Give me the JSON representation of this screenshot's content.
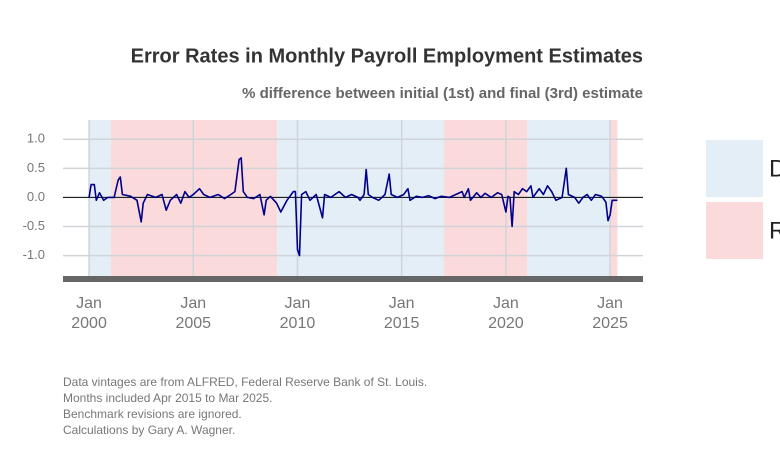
{
  "chart_data": {
    "type": "line",
    "title": "Error Rates in Monthly Payroll Employment Estimates",
    "subtitle": "% difference between initial (1st) and final (3rd) estimate",
    "notes": [
      "Data vintages are from ALFRED, Federal Reserve Bank of St. Louis.",
      "Months included Apr 2015 to Mar 2025.",
      "Benchmark revisions are ignored.",
      "Calculations by Gary A. Wagner."
    ],
    "legend": [
      {
        "name": "D",
        "color": "#e4eef7"
      },
      {
        "name": "R",
        "color": "#fadadb"
      }
    ],
    "shading": [
      {
        "start": 2000,
        "end": 2001.05,
        "party": 0
      },
      {
        "start": 2001.05,
        "end": 2009.03,
        "party": 1
      },
      {
        "start": 2009.03,
        "end": 2017.03,
        "party": 0
      },
      {
        "start": 2017.03,
        "end": 2021.03,
        "party": 1
      },
      {
        "start": 2021.03,
        "end": 2025.03,
        "party": 0
      },
      {
        "start": 2025.03,
        "end": 2025.35,
        "party": 1
      }
    ],
    "color": "#00008b",
    "x": [
      2000.0,
      2000.1,
      2000.25,
      2000.35,
      2000.5,
      2000.7,
      2000.9,
      2001.2,
      2001.4,
      2001.5,
      2001.6,
      2002.0,
      2002.3,
      2002.5,
      2002.6,
      2002.8,
      2003.2,
      2003.5,
      2003.7,
      2003.9,
      2004.2,
      2004.4,
      2004.6,
      2004.8,
      2005.0,
      2005.3,
      2005.5,
      2005.8,
      2006.2,
      2006.5,
      2006.8,
      2007.0,
      2007.2,
      2007.3,
      2007.4,
      2007.6,
      2007.9,
      2008.2,
      2008.4,
      2008.5,
      2008.7,
      2009.0,
      2009.2,
      2009.5,
      2009.8,
      2009.9,
      2010.0,
      2010.1,
      2010.2,
      2010.4,
      2010.6,
      2010.9,
      2011.2,
      2011.3,
      2011.6,
      2012.0,
      2012.3,
      2012.6,
      2012.9,
      2013.0,
      2013.2,
      2013.3,
      2013.4,
      2013.6,
      2013.9,
      2014.2,
      2014.4,
      2014.5,
      2014.8,
      2015.1,
      2015.3,
      2015.4,
      2015.7,
      2016.0,
      2016.3,
      2016.6,
      2016.9,
      2017.3,
      2017.6,
      2017.9,
      2018.0,
      2018.2,
      2018.3,
      2018.6,
      2018.8,
      2019.0,
      2019.3,
      2019.6,
      2019.8,
      2020.0,
      2020.1,
      2020.2,
      2020.3,
      2020.4,
      2020.6,
      2020.8,
      2021.0,
      2021.2,
      2021.3,
      2021.6,
      2021.8,
      2022.0,
      2022.2,
      2022.4,
      2022.7,
      2022.9,
      2023.0,
      2023.3,
      2023.5,
      2023.7,
      2023.9,
      2024.1,
      2024.3,
      2024.6,
      2024.8,
      2024.9,
      2025.0,
      2025.1,
      2025.35
    ],
    "values": [
      0.0,
      0.22,
      0.22,
      -0.05,
      0.08,
      -0.05,
      0.0,
      0.0,
      0.3,
      0.35,
      0.05,
      0.02,
      -0.05,
      -0.42,
      -0.1,
      0.05,
      0.0,
      0.05,
      -0.22,
      -0.05,
      0.05,
      -0.1,
      0.1,
      0.0,
      0.05,
      0.15,
      0.05,
      0.0,
      0.05,
      -0.02,
      0.05,
      0.1,
      0.65,
      0.68,
      0.1,
      0.0,
      -0.02,
      0.05,
      -0.3,
      -0.05,
      0.02,
      -0.1,
      -0.25,
      -0.05,
      0.1,
      0.1,
      -0.9,
      -1.0,
      0.05,
      0.1,
      -0.05,
      0.05,
      -0.35,
      0.05,
      0.0,
      0.1,
      0.0,
      0.05,
      0.0,
      -0.05,
      0.05,
      0.48,
      0.05,
      0.0,
      -0.05,
      0.05,
      0.4,
      0.05,
      0.0,
      0.05,
      0.15,
      -0.05,
      0.02,
      0.0,
      0.03,
      -0.02,
      0.02,
      0.0,
      0.05,
      0.1,
      0.0,
      0.15,
      -0.05,
      0.08,
      0.0,
      0.07,
      0.0,
      0.08,
      0.05,
      -0.25,
      0.02,
      0.0,
      -0.5,
      0.1,
      0.05,
      0.15,
      0.1,
      0.2,
      0.0,
      0.15,
      0.05,
      0.2,
      0.1,
      -0.05,
      0.0,
      0.5,
      0.05,
      0.0,
      -0.1,
      0.0,
      0.05,
      -0.05,
      0.05,
      0.02,
      -0.08,
      -0.4,
      -0.3,
      -0.05,
      -0.05
    ],
    "xlim": [
      1998.75,
      2026.58
    ],
    "xticks": [
      {
        "value": 2000,
        "label": "Jan 2000"
      },
      {
        "value": 2005,
        "label": "Jan 2005"
      },
      {
        "value": 2010,
        "label": "Jan 2010"
      },
      {
        "value": 2015,
        "label": "Jan 2015"
      },
      {
        "value": 2020,
        "label": "Jan 2020"
      },
      {
        "value": 2025,
        "label": "Jan 2025"
      }
    ],
    "ylim": [
      -1.35,
      1.33
    ],
    "yticks": [
      {
        "value": 1,
        "label": "1.0"
      },
      0.5,
      {
        "value": 0,
        "label": "0.0"
      },
      -0.5,
      {
        "value": -1,
        "label": "-1.0"
      }
    ],
    "grid": true
  }
}
